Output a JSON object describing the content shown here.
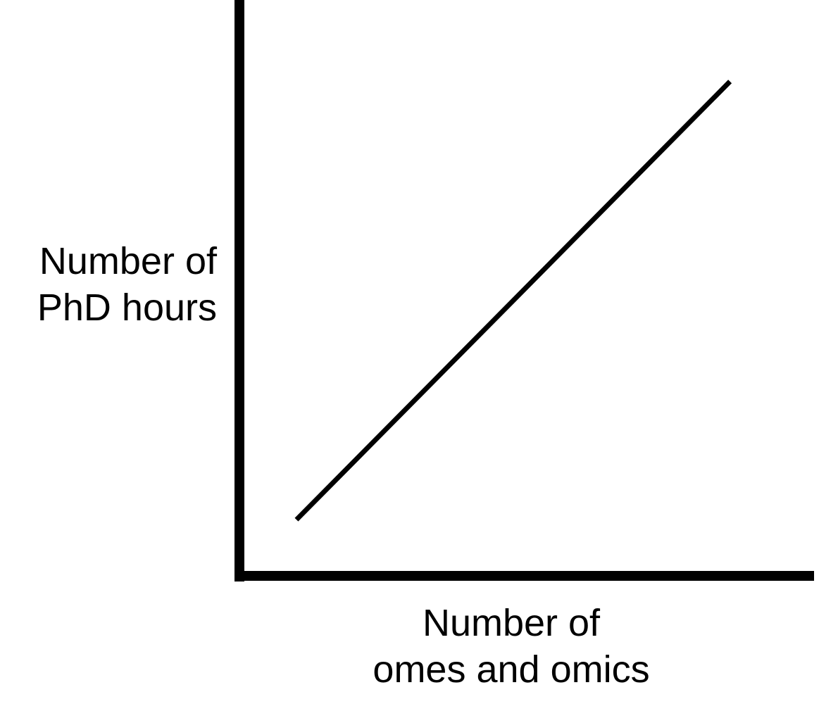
{
  "chart_data": {
    "type": "line",
    "title": "",
    "xlabel": [
      "Number of",
      "omes and omics"
    ],
    "ylabel": [
      "Number of",
      "PhD hours"
    ],
    "ticks": "none",
    "grid": false,
    "legend": "none",
    "xlim": [
      0,
      100
    ],
    "ylim": [
      0,
      100
    ],
    "series": [
      {
        "x": [
          10,
          86
        ],
        "y": [
          10,
          88
        ]
      }
    ],
    "colors": {
      "axis": "#000000",
      "line": "#000000",
      "background": "#ffffff"
    }
  }
}
